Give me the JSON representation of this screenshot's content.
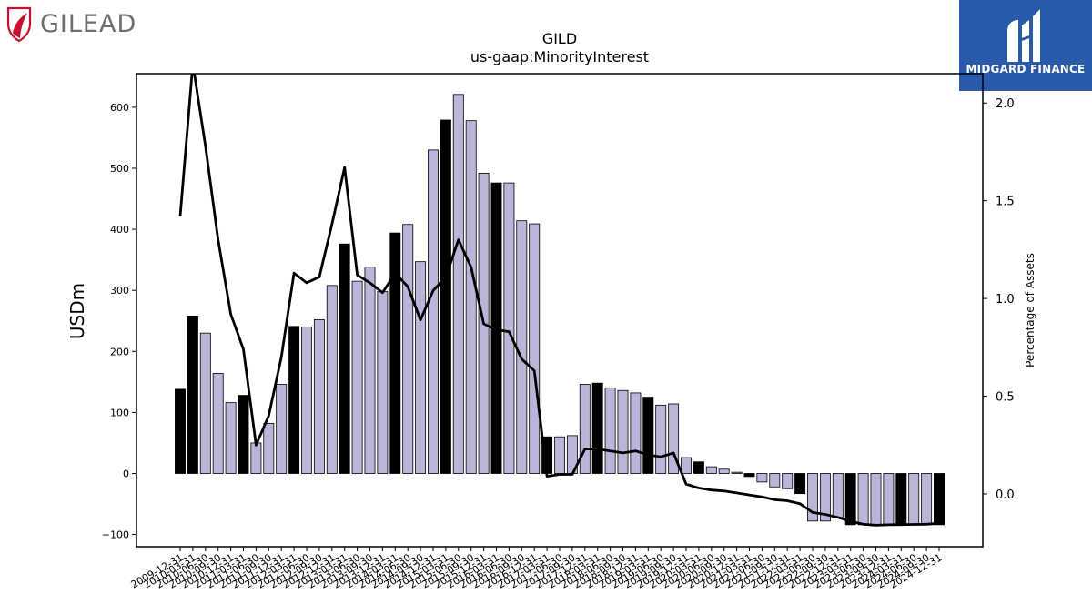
{
  "brand": {
    "left_name": "GILEAD",
    "right_name": "MIDGARD FINANCE",
    "colors": {
      "gilead_red": "#c8102e",
      "midgard_blue": "#2a5bab"
    }
  },
  "chart_data": {
    "type": "bar",
    "title": "GILD",
    "subtitle": "us-gaap:MinorityInterest",
    "ylabel": "USDm",
    "y2label": "Percentage of Assets",
    "ylim": [
      -120,
      655
    ],
    "y2lim": [
      -0.27,
      2.15
    ],
    "yticks": [
      -100,
      0,
      100,
      200,
      300,
      400,
      500,
      600
    ],
    "y2ticks": [
      0.0,
      0.5,
      1.0,
      1.5,
      2.0
    ],
    "y2tick_labels": [
      "0.0",
      "0.5",
      "1.0",
      "1.5",
      "2.0"
    ],
    "grid": false,
    "colors": {
      "bar_default": "#b9b6d9",
      "bar_highlight": "#000000",
      "line": "#000000"
    },
    "categories": [
      "2009-12-31",
      "2010-03-31",
      "2010-06-30",
      "2010-09-30",
      "2010-12-31",
      "2011-03-31",
      "2011-06-30",
      "2011-09-30",
      "2011-12-31",
      "2012-03-31",
      "2012-06-30",
      "2012-09-30",
      "2012-12-31",
      "2013-03-31",
      "2013-06-30",
      "2013-09-30",
      "2013-12-31",
      "2014-03-31",
      "2014-06-30",
      "2014-09-30",
      "2014-12-31",
      "2015-03-31",
      "2015-06-30",
      "2015-09-30",
      "2015-12-31",
      "2016-03-31",
      "2016-06-30",
      "2016-09-30",
      "2016-12-31",
      "2017-03-31",
      "2017-06-30",
      "2017-09-30",
      "2017-12-31",
      "2018-03-31",
      "2018-06-30",
      "2018-09-30",
      "2018-12-31",
      "2019-03-31",
      "2019-06-30",
      "2019-09-30",
      "2019-12-31",
      "2020-03-31",
      "2020-06-30",
      "2020-09-30",
      "2020-12-31",
      "2021-03-31",
      "2021-06-30",
      "2021-09-30",
      "2021-12-31",
      "2022-03-31",
      "2022-06-30",
      "2022-09-30",
      "2022-12-31",
      "2023-03-31",
      "2023-06-30",
      "2023-09-30",
      "2023-12-31",
      "2024-03-31",
      "2024-06-30",
      "2024-09-30",
      "2024-12-31"
    ],
    "tick_labels": [
      "2009-12-31",
      "2010-03-31",
      "2010-06-30",
      "2010-09-30",
      "2010-12-31",
      "2011-03-31",
      "2011-06-30",
      "2011-09-30",
      "2011-12-31",
      "2012-03-31",
      "2012-06-30",
      "2012-09-30",
      "2012-12-31",
      "2013-03-31",
      "2013-06-30",
      "2013-09-30",
      "2013-12-31",
      "2014-03-31",
      "2014-06-30",
      "2014-09-30",
      "2014-12-31",
      "2015-03-31",
      "2015-06-30",
      "2015-09-30",
      "2015-12-31",
      "2016-03-31",
      "2016-06-30",
      "2016-09-30",
      "2016-12-31",
      "2017-03-31",
      "2017-06-30",
      "2017-09-30",
      "2017-12-31",
      "2018-03-31",
      "2018-06-30",
      "2018-09-30",
      "2018-12-31",
      "2019-03-31",
      "2019-06-30",
      "2019-09-30",
      "2019-12-31",
      "2020-03-31",
      "2020-06-30",
      "2020-09-30",
      "2020-12-31",
      "2021-03-31",
      "2021-06-30",
      "2021-09-30",
      "2021-12-31",
      "2022-03-31",
      "2022-06-30",
      "2022-09-30",
      "2022-12-31",
      "2023-03-31",
      "2023-06-30",
      "2023-09-30",
      "2023-12-31",
      "2024-03-31",
      "2024-06-30",
      "2024-09-30",
      "2024-12-31"
    ],
    "series": [
      {
        "kind": "bar",
        "axis": "left",
        "values": [
          138,
          258,
          230,
          164,
          116,
          128,
          50,
          82,
          146,
          241,
          240,
          252,
          308,
          376,
          315,
          338,
          298,
          394,
          408,
          347,
          530,
          579,
          621,
          578,
          492,
          476,
          476,
          414,
          409,
          60,
          60,
          62,
          146,
          148,
          140,
          136,
          132,
          125,
          112,
          114,
          26,
          19,
          11,
          7,
          2,
          -5,
          -14,
          -22,
          -25,
          -33,
          -78,
          -78,
          -72,
          -84,
          -84,
          -84,
          -84,
          -84,
          -84,
          -84,
          -84
        ],
        "highlight": [
          true,
          true,
          false,
          false,
          false,
          true,
          false,
          false,
          false,
          true,
          false,
          false,
          false,
          true,
          false,
          false,
          false,
          true,
          false,
          false,
          false,
          true,
          false,
          false,
          false,
          true,
          false,
          false,
          false,
          true,
          false,
          false,
          false,
          true,
          false,
          false,
          false,
          true,
          false,
          false,
          false,
          true,
          false,
          false,
          false,
          true,
          false,
          false,
          false,
          true,
          false,
          false,
          false,
          true,
          false,
          false,
          false,
          true,
          false,
          false,
          true
        ]
      },
      {
        "kind": "line",
        "axis": "right",
        "values": [
          1.42,
          2.2,
          1.78,
          1.3,
          0.92,
          0.74,
          0.25,
          0.4,
          0.7,
          1.13,
          1.08,
          1.11,
          1.38,
          1.67,
          1.12,
          1.08,
          1.03,
          1.13,
          1.06,
          0.89,
          1.04,
          1.11,
          1.3,
          1.16,
          0.87,
          0.84,
          0.83,
          0.69,
          0.63,
          0.09,
          0.1,
          0.1,
          0.23,
          0.23,
          0.22,
          0.21,
          0.22,
          0.2,
          0.19,
          0.21,
          0.05,
          0.03,
          0.02,
          0.015,
          0.005,
          -0.005,
          -0.015,
          -0.03,
          -0.035,
          -0.05,
          -0.095,
          -0.105,
          -0.12,
          -0.14,
          -0.155,
          -0.16,
          -0.158,
          -0.157,
          -0.156,
          -0.155,
          -0.15
        ]
      }
    ]
  }
}
